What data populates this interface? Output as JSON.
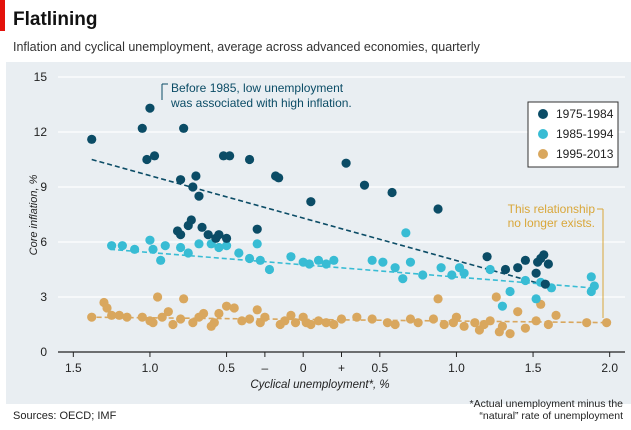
{
  "header": {
    "title": "Flatlining",
    "subtitle": "Inflation and cyclical unemployment, average across advanced economies, quarterly"
  },
  "chart_data": {
    "type": "scatter",
    "title": "Flatlining",
    "xlabel": "Cyclical unemployment*, %",
    "ylabel": "Core inflation, %",
    "xlim": [
      -1.6,
      2.1
    ],
    "ylim": [
      0,
      15
    ],
    "yticks": [
      "0",
      "3",
      "6",
      "9",
      "12",
      "15"
    ],
    "xticks": [
      {
        "v": -1.5,
        "label": "1.5"
      },
      {
        "v": -1.0,
        "label": "1.0"
      },
      {
        "v": -0.5,
        "label": "0.5"
      },
      {
        "v": -0.25,
        "label": "–"
      },
      {
        "v": 0,
        "label": "0"
      },
      {
        "v": 0.25,
        "label": "+"
      },
      {
        "v": 0.5,
        "label": "0.5"
      },
      {
        "v": 1.0,
        "label": "1.0"
      },
      {
        "v": 1.5,
        "label": "1.5"
      },
      {
        "v": 2.0,
        "label": "2.0"
      }
    ],
    "series": [
      {
        "name": "1975-1984",
        "color": "#0b4c66",
        "trend": [
          [
            -1.38,
            10.5
          ],
          [
            1.6,
            3.6
          ]
        ],
        "points": [
          [
            -1.38,
            11.6
          ],
          [
            -1.05,
            12.2
          ],
          [
            -1.0,
            13.3
          ],
          [
            -1.02,
            10.5
          ],
          [
            -0.97,
            10.7
          ],
          [
            -0.78,
            12.2
          ],
          [
            -0.8,
            9.4
          ],
          [
            -0.7,
            9.6
          ],
          [
            -0.72,
            9.0
          ],
          [
            -0.68,
            8.5
          ],
          [
            -0.82,
            6.6
          ],
          [
            -0.8,
            6.4
          ],
          [
            -0.75,
            6.9
          ],
          [
            -0.73,
            7.2
          ],
          [
            -0.66,
            6.8
          ],
          [
            -0.62,
            6.4
          ],
          [
            -0.57,
            6.2
          ],
          [
            -0.55,
            6.4
          ],
          [
            -0.5,
            6.2
          ],
          [
            -0.52,
            10.7
          ],
          [
            -0.48,
            10.7
          ],
          [
            -0.35,
            10.5
          ],
          [
            -0.3,
            6.7
          ],
          [
            -0.18,
            9.6
          ],
          [
            -0.16,
            9.5
          ],
          [
            0.05,
            8.2
          ],
          [
            0.28,
            10.3
          ],
          [
            0.4,
            9.1
          ],
          [
            0.58,
            8.7
          ],
          [
            0.88,
            7.8
          ],
          [
            1.2,
            5.2
          ],
          [
            1.32,
            4.5
          ],
          [
            1.4,
            4.6
          ],
          [
            1.45,
            5.0
          ],
          [
            1.52,
            4.3
          ],
          [
            1.53,
            4.9
          ],
          [
            1.55,
            5.1
          ],
          [
            1.57,
            5.3
          ],
          [
            1.6,
            4.8
          ],
          [
            1.58,
            3.7
          ]
        ]
      },
      {
        "name": "1985-1994",
        "color": "#38bcd4",
        "trend": [
          [
            -1.26,
            5.6
          ],
          [
            1.88,
            3.5
          ]
        ],
        "points": [
          [
            -1.25,
            5.8
          ],
          [
            -1.18,
            5.8
          ],
          [
            -1.1,
            5.6
          ],
          [
            -1.0,
            6.1
          ],
          [
            -0.98,
            5.6
          ],
          [
            -0.93,
            5.0
          ],
          [
            -0.9,
            5.8
          ],
          [
            -0.8,
            5.7
          ],
          [
            -0.75,
            5.4
          ],
          [
            -0.68,
            5.9
          ],
          [
            -0.6,
            5.9
          ],
          [
            -0.55,
            5.7
          ],
          [
            -0.5,
            5.8
          ],
          [
            -0.42,
            5.4
          ],
          [
            -0.35,
            5.1
          ],
          [
            -0.3,
            5.9
          ],
          [
            -0.28,
            5.0
          ],
          [
            -0.22,
            4.5
          ],
          [
            -0.08,
            5.2
          ],
          [
            0.0,
            4.9
          ],
          [
            0.04,
            4.8
          ],
          [
            0.1,
            5.0
          ],
          [
            0.15,
            4.8
          ],
          [
            0.2,
            5.0
          ],
          [
            0.45,
            5.0
          ],
          [
            0.52,
            4.9
          ],
          [
            0.6,
            4.6
          ],
          [
            0.65,
            4.0
          ],
          [
            0.67,
            6.5
          ],
          [
            0.7,
            4.9
          ],
          [
            0.78,
            4.2
          ],
          [
            0.9,
            4.6
          ],
          [
            0.97,
            4.2
          ],
          [
            1.02,
            4.6
          ],
          [
            1.05,
            4.3
          ],
          [
            1.22,
            4.5
          ],
          [
            1.3,
            2.5
          ],
          [
            1.35,
            3.3
          ],
          [
            1.45,
            3.9
          ],
          [
            1.52,
            2.9
          ],
          [
            1.55,
            3.8
          ],
          [
            1.62,
            3.5
          ],
          [
            1.88,
            4.1
          ],
          [
            1.9,
            3.6
          ],
          [
            1.88,
            3.3
          ]
        ]
      },
      {
        "name": "1995-2013",
        "color": "#d9a75e",
        "trend": [
          [
            -1.4,
            1.9
          ],
          [
            2.0,
            1.6
          ]
        ],
        "points": [
          [
            -1.38,
            1.9
          ],
          [
            -1.3,
            2.7
          ],
          [
            -1.28,
            2.4
          ],
          [
            -1.25,
            2.0
          ],
          [
            -1.2,
            2.0
          ],
          [
            -1.15,
            1.9
          ],
          [
            -1.05,
            1.9
          ],
          [
            -1.0,
            1.7
          ],
          [
            -0.98,
            1.6
          ],
          [
            -0.95,
            3.0
          ],
          [
            -0.92,
            1.9
          ],
          [
            -0.88,
            2.2
          ],
          [
            -0.85,
            1.5
          ],
          [
            -0.8,
            1.8
          ],
          [
            -0.78,
            2.9
          ],
          [
            -0.72,
            1.6
          ],
          [
            -0.68,
            1.9
          ],
          [
            -0.65,
            2.1
          ],
          [
            -0.6,
            1.4
          ],
          [
            -0.58,
            1.6
          ],
          [
            -0.55,
            2.1
          ],
          [
            -0.5,
            2.5
          ],
          [
            -0.45,
            2.4
          ],
          [
            -0.4,
            1.7
          ],
          [
            -0.35,
            1.8
          ],
          [
            -0.3,
            2.3
          ],
          [
            -0.28,
            1.6
          ],
          [
            -0.25,
            1.9
          ],
          [
            -0.15,
            1.5
          ],
          [
            -0.12,
            1.7
          ],
          [
            -0.08,
            2.0
          ],
          [
            -0.05,
            1.6
          ],
          [
            0.0,
            1.9
          ],
          [
            0.02,
            1.6
          ],
          [
            0.05,
            1.5
          ],
          [
            0.1,
            1.7
          ],
          [
            0.15,
            1.6
          ],
          [
            0.2,
            1.5
          ],
          [
            0.25,
            1.8
          ],
          [
            0.35,
            1.9
          ],
          [
            0.45,
            1.8
          ],
          [
            0.55,
            1.6
          ],
          [
            0.6,
            1.5
          ],
          [
            0.7,
            1.8
          ],
          [
            0.75,
            1.6
          ],
          [
            0.85,
            1.8
          ],
          [
            0.88,
            2.9
          ],
          [
            0.92,
            1.5
          ],
          [
            0.98,
            1.6
          ],
          [
            1.0,
            1.9
          ],
          [
            1.05,
            1.4
          ],
          [
            1.12,
            1.6
          ],
          [
            1.15,
            1.2
          ],
          [
            1.18,
            1.5
          ],
          [
            1.22,
            1.7
          ],
          [
            1.26,
            3.0
          ],
          [
            1.28,
            1.1
          ],
          [
            1.3,
            1.4
          ],
          [
            1.35,
            1.0
          ],
          [
            1.4,
            2.2
          ],
          [
            1.45,
            1.3
          ],
          [
            1.52,
            1.7
          ],
          [
            1.55,
            2.6
          ],
          [
            1.6,
            1.5
          ],
          [
            1.65,
            2.0
          ],
          [
            1.85,
            1.6
          ],
          [
            1.98,
            1.6
          ]
        ]
      }
    ],
    "legend": {
      "position": "top-right"
    },
    "annotations": {
      "dark": [
        "Before 1985, low unemployment",
        "was associated with high inflation."
      ],
      "gold": [
        "This relationship",
        "no longer exists."
      ]
    }
  },
  "footer": {
    "source": "Sources: OECD; IMF",
    "footnote_line1": "*Actual unemployment minus the",
    "footnote_line2": "“natural” rate of unemployment"
  }
}
